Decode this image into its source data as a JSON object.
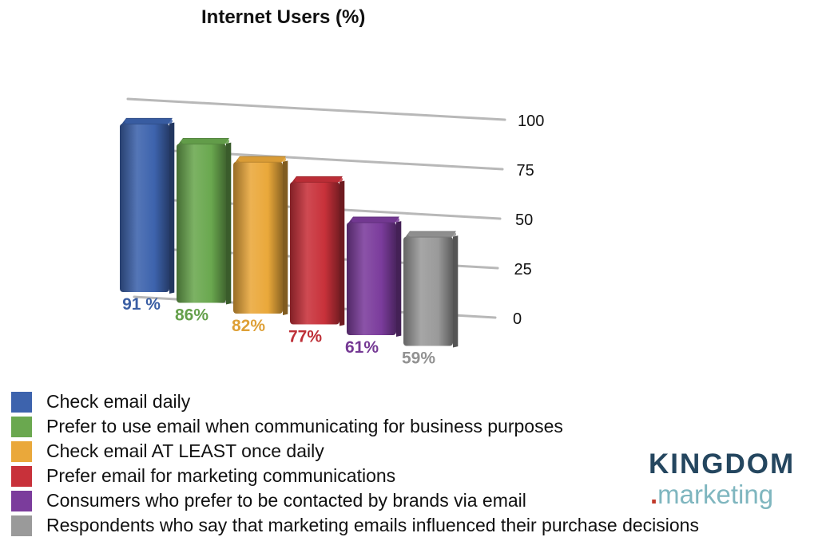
{
  "chart_data": {
    "type": "bar",
    "title": "Internet Users (%)",
    "categories": [
      "Check email daily",
      "Prefer to use email when communicating for business purposes",
      "Check email AT LEAST once daily",
      "Prefer email for marketing communications",
      "Consumers who prefer to be contacted by brands via email",
      "Respondents who say that marketing emails influenced their purchase decisions"
    ],
    "values": [
      91,
      86,
      82,
      77,
      61,
      59
    ],
    "data_labels": [
      "91 %",
      "86%",
      "82%",
      "77%",
      "61%",
      "59%"
    ],
    "colors": [
      "#3d63ad",
      "#6aa84f",
      "#eaa83a",
      "#c8313a",
      "#7b3c9c",
      "#9a9a9a"
    ],
    "ylim": [
      0,
      100
    ],
    "yticks": [
      "0",
      "25",
      "50",
      "75",
      "100"
    ],
    "grid": true,
    "legend_position": "bottom-left",
    "style": "3d"
  },
  "logo": {
    "top": "KINGDOM",
    "dot": ".",
    "bottom": "marketing"
  }
}
